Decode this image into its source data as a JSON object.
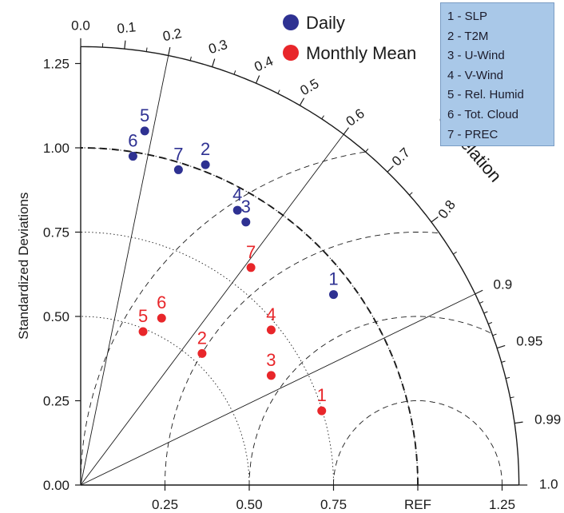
{
  "chart_data": {
    "type": "scatter",
    "subtype": "taylor-diagram",
    "ylabel": "Standardized Deviations",
    "angular_label": "Correlation",
    "radial_max": 1.3,
    "radial_ticks": [
      "0.00",
      "0.25",
      "0.50",
      "0.75",
      "1.00",
      "1.25"
    ],
    "radial_tick_values": [
      0,
      0.25,
      0.5,
      0.75,
      1.0,
      1.25
    ],
    "x_tick_labels": [
      "0.25",
      "0.50",
      "0.75",
      "REF",
      "1.25"
    ],
    "x_tick_values": [
      0.25,
      0.5,
      0.75,
      1.0,
      1.25
    ],
    "correlation_ticks": [
      "0.0",
      "0.1",
      "0.2",
      "0.3",
      "0.4",
      "0.5",
      "0.6",
      "0.7",
      "0.8",
      "0.9",
      "0.95",
      "0.99",
      "1.0"
    ],
    "correlation_values": [
      0.0,
      0.1,
      0.2,
      0.3,
      0.4,
      0.5,
      0.6,
      0.7,
      0.8,
      0.9,
      0.95,
      0.99,
      1.0
    ],
    "correlation_rays": [
      0.2,
      0.6,
      0.9
    ],
    "rms_circles": [
      0.25,
      0.5,
      0.75,
      1.0
    ],
    "dotted_arcs": [
      0.5,
      0.75,
      1.0
    ],
    "ref_arc": 1.0,
    "grid": true,
    "legend_position": "top-center",
    "series": [
      {
        "name": "Daily",
        "color": "#2e3192",
        "points": [
          {
            "label": "1",
            "x": 0.75,
            "y": 0.565
          },
          {
            "label": "2",
            "x": 0.37,
            "y": 0.95
          },
          {
            "label": "3",
            "x": 0.49,
            "y": 0.78
          },
          {
            "label": "4",
            "x": 0.465,
            "y": 0.815
          },
          {
            "label": "5",
            "x": 0.19,
            "y": 1.05
          },
          {
            "label": "6",
            "x": 0.155,
            "y": 0.975
          },
          {
            "label": "7",
            "x": 0.29,
            "y": 0.935
          }
        ]
      },
      {
        "name": "Monthly Mean",
        "color": "#e8262a",
        "points": [
          {
            "label": "1",
            "x": 0.715,
            "y": 0.22
          },
          {
            "label": "2",
            "x": 0.36,
            "y": 0.39
          },
          {
            "label": "3",
            "x": 0.565,
            "y": 0.325
          },
          {
            "label": "4",
            "x": 0.565,
            "y": 0.46
          },
          {
            "label": "5",
            "x": 0.185,
            "y": 0.455
          },
          {
            "label": "6",
            "x": 0.24,
            "y": 0.495
          },
          {
            "label": "7",
            "x": 0.505,
            "y": 0.645
          }
        ]
      }
    ],
    "variable_key": [
      "1 - SLP",
      "2 - T2M",
      "3 - U-Wind",
      "4 - V-Wind",
      "5 - Rel. Humid",
      "6 - Tot. Cloud",
      "7 - PREC"
    ],
    "colors": {
      "axis": "#1a1a1a",
      "legend_bg": "#a9c8e8"
    }
  }
}
